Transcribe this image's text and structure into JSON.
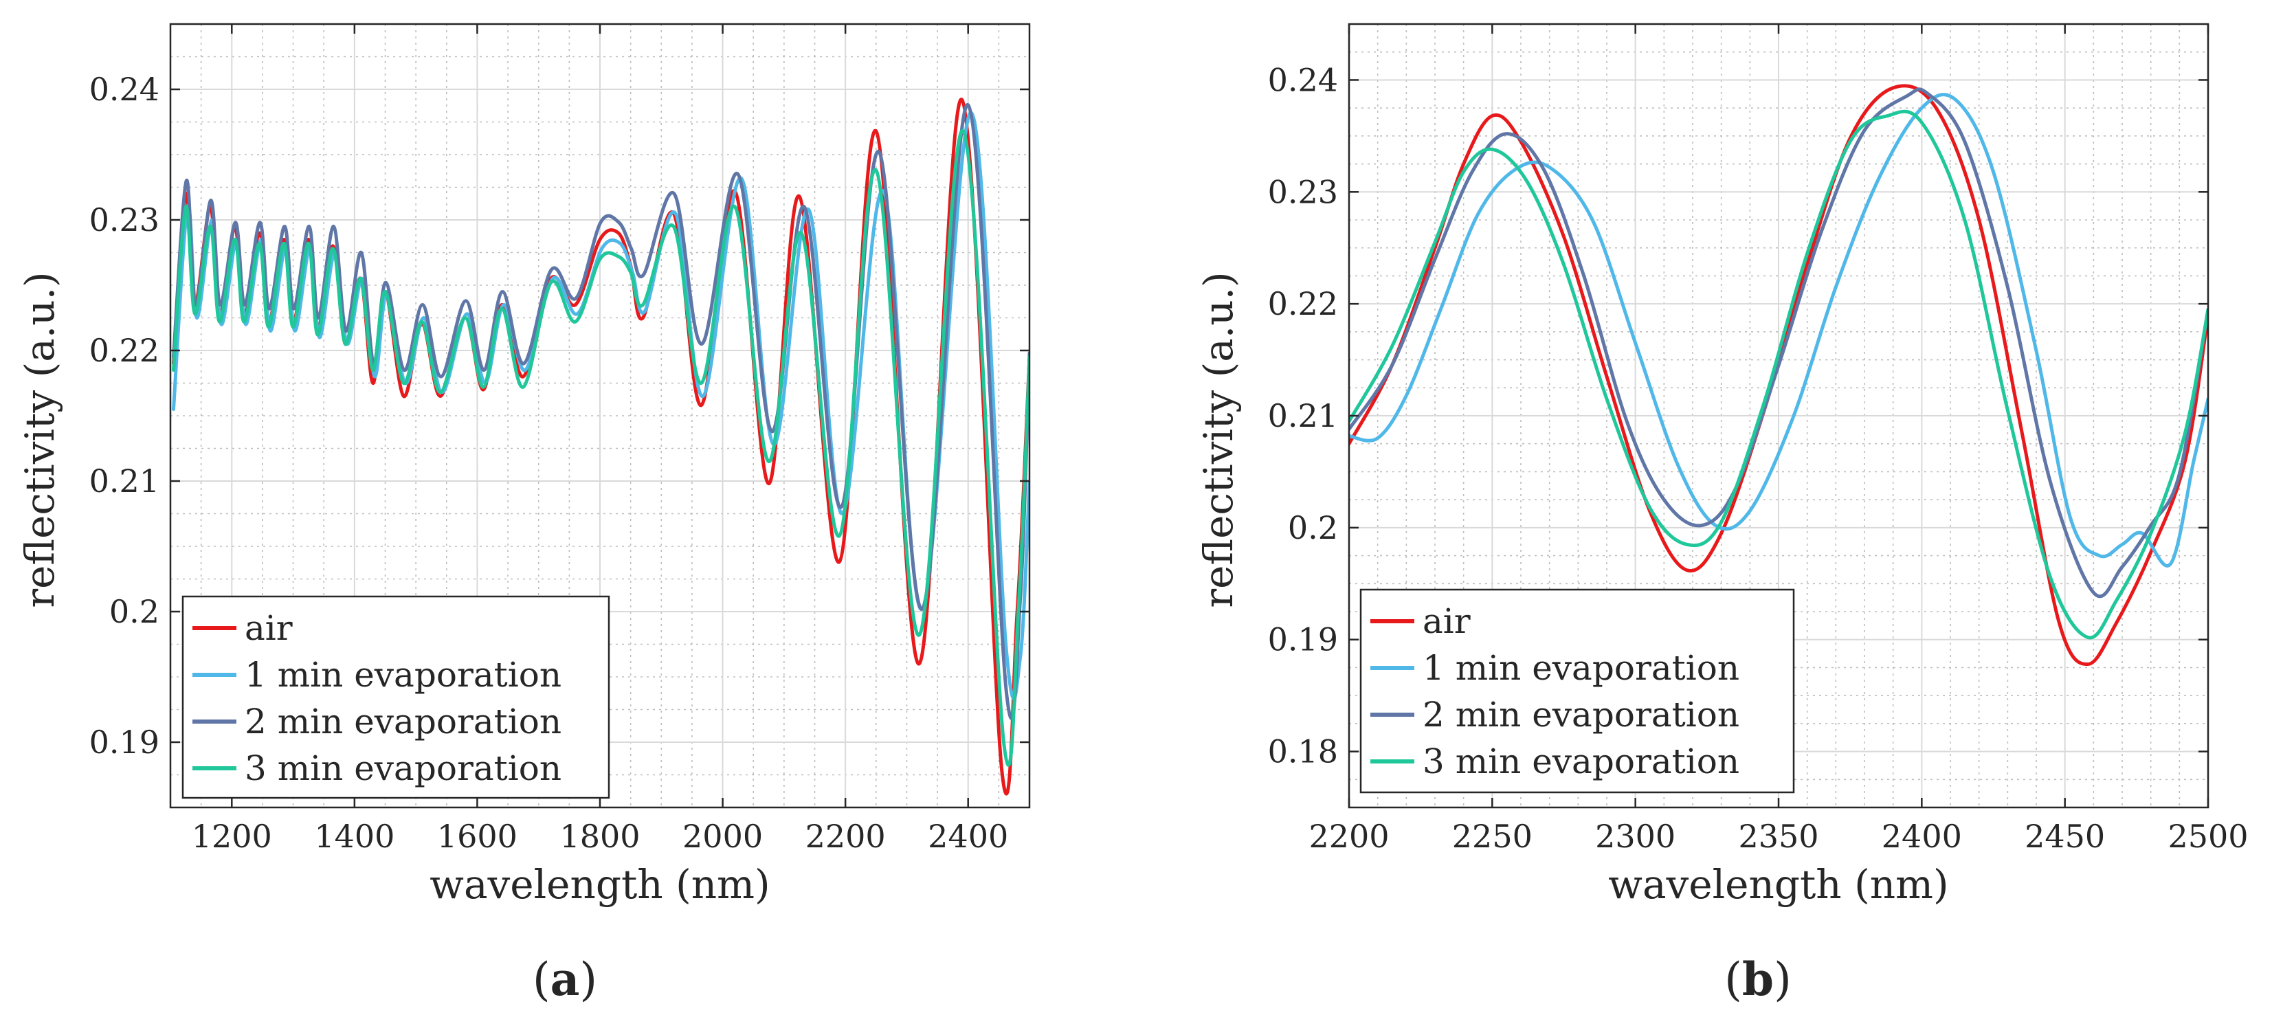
{
  "figure": {
    "panel_labels": [
      "(a)",
      "(b)"
    ],
    "panel_letters": [
      "a",
      "b"
    ]
  },
  "legend_labels": [
    "air",
    "1 min evaporation",
    "2 min evaporation",
    "3 min evaporation"
  ],
  "colors": {
    "air": "#e8191b",
    "evap1": "#4fb8e8",
    "evap2": "#5f76a6",
    "evap3": "#1fc79a",
    "major_grid": "#d9d9d9",
    "minor_grid": "#bdbdbd",
    "axes": "#262626"
  },
  "chart_data": [
    {
      "type": "line",
      "panel": "(a)",
      "xlabel": "wavelength (nm)",
      "ylabel": "reflectivity (a.u.)",
      "xlim": [
        1100,
        2500
      ],
      "ylim": [
        0.185,
        0.245
      ],
      "xticks": [
        1200,
        1400,
        1600,
        1800,
        2000,
        2200,
        2400
      ],
      "yticks": [
        0.19,
        0.2,
        0.21,
        0.22,
        0.23,
        0.24
      ],
      "xtick_labels": [
        "1200",
        "1400",
        "1600",
        "1800",
        "2000",
        "2200",
        "2400"
      ],
      "ytick_labels": [
        "0.19",
        "0.2",
        "0.21",
        "0.22",
        "0.23",
        "0.24"
      ],
      "grid": true,
      "legend_position": "bottom-left",
      "series": [
        {
          "name": "air",
          "x": [
            1105,
            1125,
            1140,
            1165,
            1180,
            1205,
            1220,
            1245,
            1260,
            1285,
            1300,
            1325,
            1340,
            1365,
            1385,
            1410,
            1430,
            1450,
            1480,
            1510,
            1540,
            1580,
            1610,
            1640,
            1675,
            1720,
            1760,
            1800,
            1830,
            1850,
            1870,
            1920,
            1965,
            2020,
            2075,
            2125,
            2190,
            2250,
            2320,
            2390,
            2455,
            2480,
            2500
          ],
          "values": [
            0.219,
            0.232,
            0.2235,
            0.231,
            0.2225,
            0.2295,
            0.2225,
            0.229,
            0.222,
            0.2285,
            0.222,
            0.2285,
            0.2215,
            0.228,
            0.2205,
            0.2255,
            0.2175,
            0.2245,
            0.2165,
            0.222,
            0.2165,
            0.2225,
            0.217,
            0.2235,
            0.218,
            0.2255,
            0.2235,
            0.2285,
            0.229,
            0.2265,
            0.2225,
            0.2305,
            0.2158,
            0.2322,
            0.2098,
            0.2318,
            0.2038,
            0.2368,
            0.196,
            0.2392,
            0.1878,
            0.2,
            0.2195
          ]
        },
        {
          "name": "1 min evaporation",
          "x": [
            1105,
            1128,
            1143,
            1168,
            1183,
            1208,
            1223,
            1248,
            1263,
            1288,
            1303,
            1328,
            1343,
            1368,
            1388,
            1413,
            1433,
            1453,
            1483,
            1513,
            1543,
            1583,
            1613,
            1643,
            1678,
            1723,
            1763,
            1803,
            1833,
            1853,
            1873,
            1923,
            1968,
            2030,
            2083,
            2140,
            2195,
            2262,
            2325,
            2405,
            2462,
            2485,
            2500
          ],
          "values": [
            0.2155,
            0.231,
            0.2225,
            0.23,
            0.222,
            0.2285,
            0.222,
            0.2285,
            0.2215,
            0.228,
            0.2215,
            0.228,
            0.221,
            0.2275,
            0.2205,
            0.2255,
            0.218,
            0.2245,
            0.2175,
            0.2225,
            0.2168,
            0.2228,
            0.2175,
            0.2235,
            0.2185,
            0.2255,
            0.2228,
            0.2278,
            0.2282,
            0.226,
            0.223,
            0.2305,
            0.2165,
            0.2332,
            0.2128,
            0.2308,
            0.2075,
            0.2322,
            0.2002,
            0.2382,
            0.1972,
            0.1965,
            0.21
          ]
        },
        {
          "name": "2 min evaporation",
          "x": [
            1105,
            1126,
            1141,
            1166,
            1181,
            1206,
            1221,
            1246,
            1261,
            1286,
            1301,
            1326,
            1341,
            1366,
            1386,
            1411,
            1431,
            1451,
            1481,
            1511,
            1541,
            1581,
            1611,
            1641,
            1676,
            1721,
            1761,
            1801,
            1831,
            1851,
            1871,
            1921,
            1966,
            2025,
            2080,
            2133,
            2193,
            2255,
            2325,
            2400,
            2462,
            2485,
            2500
          ],
          "values": [
            0.2195,
            0.233,
            0.2235,
            0.2315,
            0.2235,
            0.2298,
            0.2235,
            0.2298,
            0.2232,
            0.2295,
            0.2232,
            0.2295,
            0.2225,
            0.2295,
            0.2215,
            0.2275,
            0.219,
            0.2252,
            0.2185,
            0.2235,
            0.218,
            0.2238,
            0.2185,
            0.2245,
            0.219,
            0.2262,
            0.224,
            0.2298,
            0.2298,
            0.2278,
            0.2258,
            0.232,
            0.2205,
            0.2335,
            0.2138,
            0.231,
            0.208,
            0.2352,
            0.2002,
            0.2388,
            0.194,
            0.201,
            0.2198
          ]
        },
        {
          "name": "3 min evaporation",
          "x": [
            1105,
            1125,
            1140,
            1165,
            1180,
            1205,
            1220,
            1245,
            1260,
            1285,
            1300,
            1325,
            1340,
            1365,
            1385,
            1410,
            1430,
            1450,
            1480,
            1510,
            1540,
            1580,
            1610,
            1640,
            1675,
            1720,
            1760,
            1800,
            1830,
            1850,
            1870,
            1920,
            1965,
            2020,
            2075,
            2128,
            2190,
            2250,
            2320,
            2392,
            2458,
            2482,
            2500
          ],
          "values": [
            0.2185,
            0.231,
            0.2228,
            0.2295,
            0.2222,
            0.2285,
            0.2222,
            0.2282,
            0.2218,
            0.2282,
            0.2218,
            0.2282,
            0.2212,
            0.2278,
            0.2205,
            0.2255,
            0.2185,
            0.2245,
            0.2175,
            0.2222,
            0.2168,
            0.2225,
            0.2172,
            0.2232,
            0.2172,
            0.2252,
            0.2222,
            0.227,
            0.2272,
            0.226,
            0.2235,
            0.2295,
            0.2175,
            0.231,
            0.2115,
            0.229,
            0.2058,
            0.2338,
            0.1982,
            0.2368,
            0.19,
            0.2002,
            0.2195
          ]
        }
      ]
    },
    {
      "type": "line",
      "panel": "(b)",
      "xlabel": "wavelength (nm)",
      "ylabel": "reflectivity (a.u.)",
      "xlim": [
        2200,
        2500
      ],
      "ylim": [
        0.175,
        0.245
      ],
      "xticks": [
        2200,
        2250,
        2300,
        2350,
        2400,
        2450,
        2500
      ],
      "yticks": [
        0.18,
        0.19,
        0.2,
        0.21,
        0.22,
        0.23,
        0.24
      ],
      "xtick_labels": [
        "2200",
        "2250",
        "2300",
        "2350",
        "2400",
        "2450",
        "2500"
      ],
      "ytick_labels": [
        "0.18",
        "0.19",
        "0.2",
        "0.21",
        "0.22",
        "0.23",
        "0.24"
      ],
      "grid": true,
      "legend_position": "bottom-left",
      "series": [
        {
          "name": "air",
          "x": [
            2200,
            2215,
            2230,
            2240,
            2250,
            2260,
            2275,
            2290,
            2305,
            2318,
            2330,
            2345,
            2360,
            2375,
            2390,
            2405,
            2420,
            2435,
            2448,
            2458,
            2468,
            2480,
            2492,
            2500
          ],
          "values": [
            0.2075,
            0.2145,
            0.225,
            0.2325,
            0.2368,
            0.2345,
            0.226,
            0.2135,
            0.2015,
            0.1962,
            0.1995,
            0.2105,
            0.2235,
            0.2348,
            0.2393,
            0.2375,
            0.2275,
            0.2085,
            0.1915,
            0.1878,
            0.1915,
            0.1978,
            0.206,
            0.219
          ]
        },
        {
          "name": "1 min evaporation",
          "x": [
            2200,
            2210,
            2220,
            2232,
            2245,
            2258,
            2270,
            2285,
            2300,
            2315,
            2328,
            2340,
            2355,
            2370,
            2385,
            2400,
            2412,
            2425,
            2440,
            2452,
            2462,
            2470,
            2477,
            2487,
            2495,
            2500
          ],
          "values": [
            0.2082,
            0.208,
            0.2118,
            0.2195,
            0.228,
            0.232,
            0.2322,
            0.2275,
            0.2165,
            0.2055,
            0.2002,
            0.2015,
            0.2098,
            0.2215,
            0.2312,
            0.2375,
            0.2382,
            0.2318,
            0.2158,
            0.2008,
            0.1975,
            0.1985,
            0.1995,
            0.1968,
            0.206,
            0.2115
          ]
        },
        {
          "name": "2 min evaporation",
          "x": [
            2200,
            2215,
            2230,
            2243,
            2255,
            2268,
            2282,
            2297,
            2310,
            2323,
            2335,
            2350,
            2365,
            2380,
            2395,
            2402,
            2415,
            2430,
            2445,
            2460,
            2470,
            2480,
            2490,
            2500
          ],
          "values": [
            0.2088,
            0.2145,
            0.224,
            0.2318,
            0.2352,
            0.232,
            0.2225,
            0.2095,
            0.2025,
            0.2002,
            0.2035,
            0.2145,
            0.2265,
            0.2355,
            0.2386,
            0.2388,
            0.2345,
            0.2215,
            0.204,
            0.1942,
            0.1965,
            0.2002,
            0.2048,
            0.2195
          ]
        },
        {
          "name": "3 min evaporation",
          "x": [
            2200,
            2215,
            2230,
            2240,
            2250,
            2262,
            2275,
            2290,
            2305,
            2318,
            2330,
            2345,
            2360,
            2375,
            2388,
            2400,
            2415,
            2430,
            2445,
            2458,
            2468,
            2480,
            2492,
            2500
          ],
          "values": [
            0.2095,
            0.2162,
            0.2255,
            0.2318,
            0.2338,
            0.231,
            0.2235,
            0.2115,
            0.2018,
            0.1985,
            0.2005,
            0.2112,
            0.2245,
            0.2345,
            0.2368,
            0.2362,
            0.2275,
            0.2105,
            0.1955,
            0.1902,
            0.1935,
            0.1995,
            0.2085,
            0.2195
          ]
        }
      ]
    }
  ]
}
